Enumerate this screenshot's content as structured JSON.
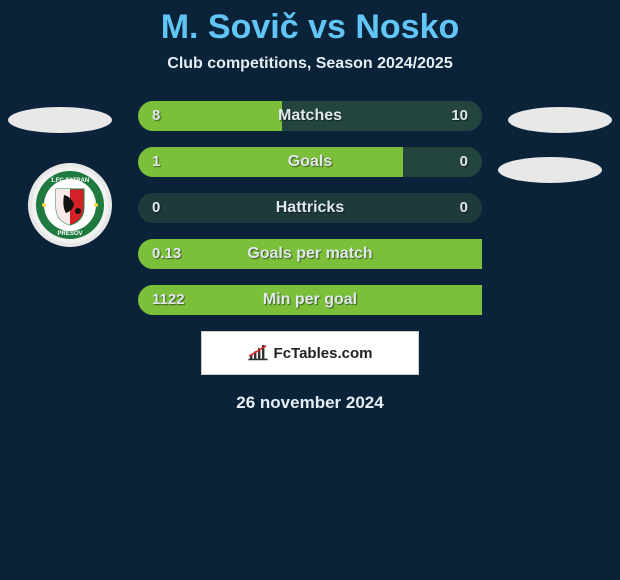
{
  "title": "M. Sovič vs Nosko",
  "subtitle": "Club competitions, Season 2024/2025",
  "date": "26 november 2024",
  "attribution": "FcTables.com",
  "colors": {
    "background": "#0a2338",
    "title_color": "#61c5f5",
    "text_color": "#e6eef5",
    "bar_color_a": "#7bbf3a",
    "bar_color_b": "#24443f",
    "bar_track": "#1f3a3a",
    "badge_bg": "#e8e8e8"
  },
  "stats": [
    {
      "label": "Matches",
      "value_a": "8",
      "value_b": "10",
      "left_width_pct": 42,
      "right_width_pct": 58,
      "left_color": "#7bbf3a",
      "right_color": "#24443f"
    },
    {
      "label": "Goals",
      "value_a": "1",
      "value_b": "0",
      "left_width_pct": 77,
      "right_width_pct": 23,
      "left_color": "#7bbf3a",
      "right_color": "#24443f"
    },
    {
      "label": "Hattricks",
      "value_a": "0",
      "value_b": "0",
      "left_width_pct": 0,
      "right_width_pct": 0,
      "left_color": "#7bbf3a",
      "right_color": "#24443f"
    },
    {
      "label": "Goals per match",
      "value_a": "0.13",
      "value_b": "",
      "left_width_pct": 100,
      "right_width_pct": 0,
      "left_color": "#7bbf3a",
      "right_color": "#24443f"
    },
    {
      "label": "Min per goal",
      "value_a": "1122",
      "value_b": "",
      "left_width_pct": 100,
      "right_width_pct": 0,
      "left_color": "#7bbf3a",
      "right_color": "#24443f"
    }
  ],
  "club_badge": {
    "caption_top": "1.FC TATRAN",
    "caption_bottom": "PREŠOV",
    "ring_color": "#1e7a3e",
    "shield_colors": [
      "#d62027",
      "#ffffff",
      "#1e7a3e"
    ]
  }
}
